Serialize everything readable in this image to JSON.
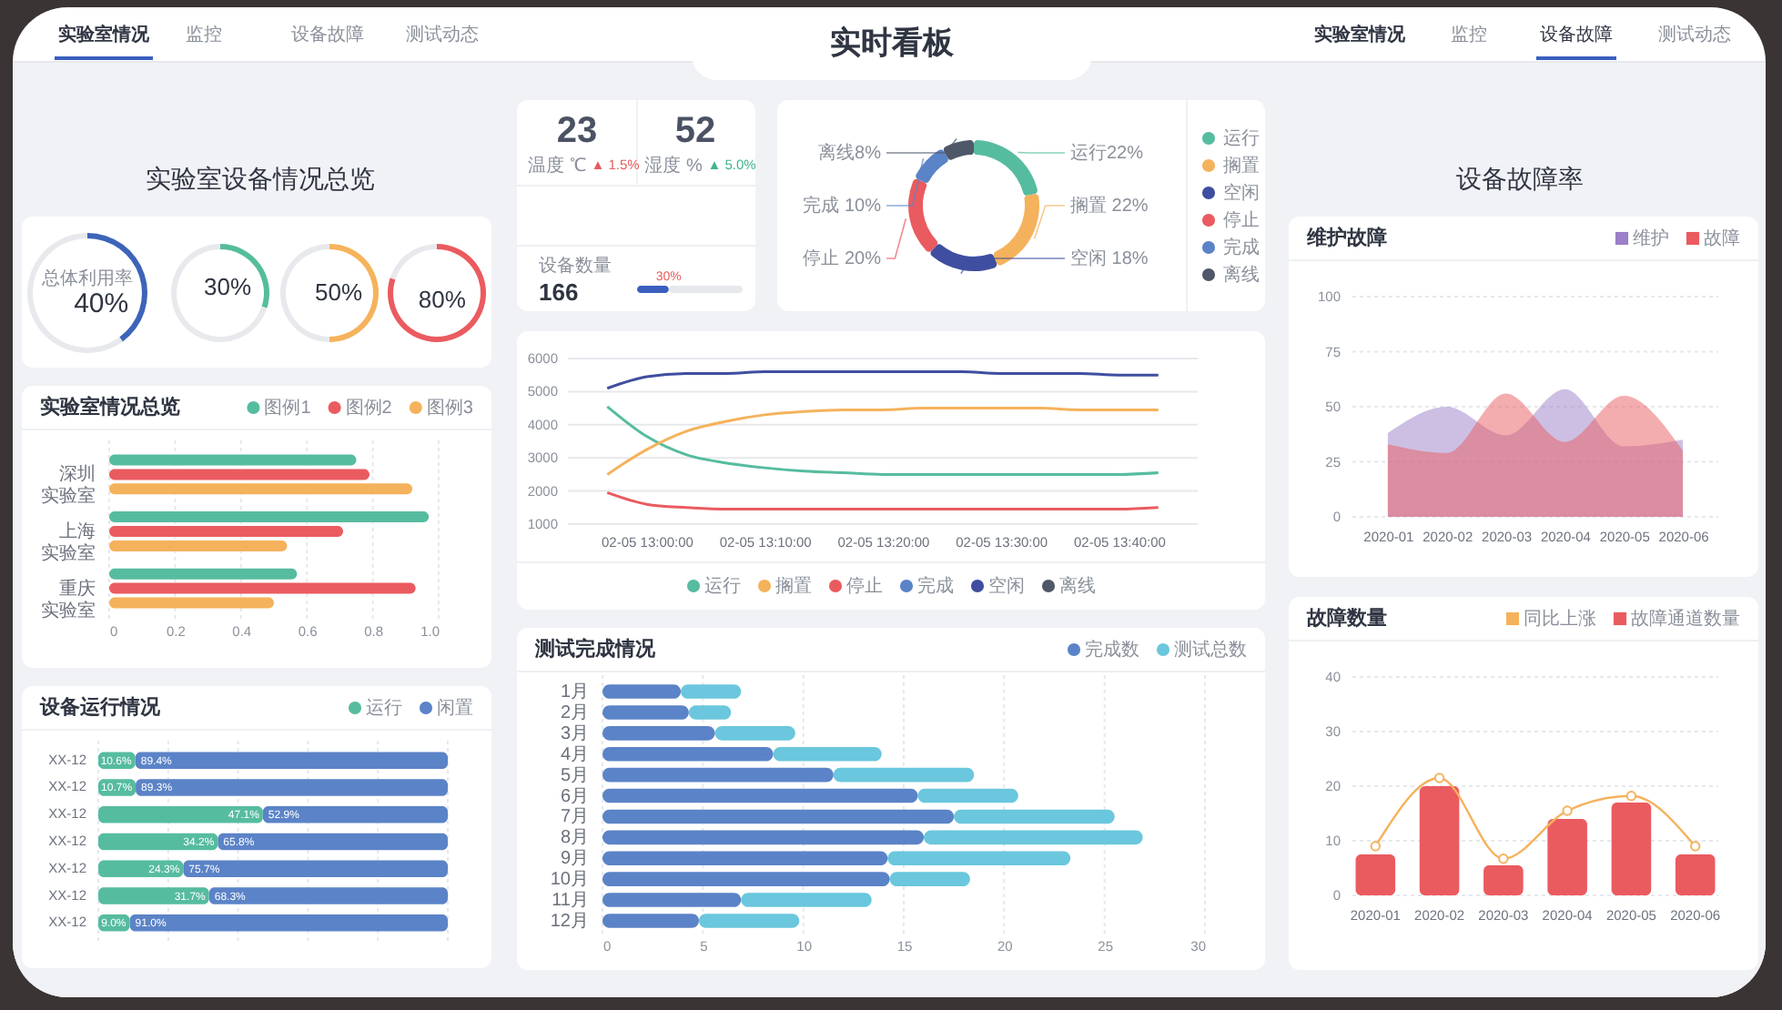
{
  "chart_data": [
    {
      "type": "other",
      "title": "实时看板",
      "annotations": [
        "实验室情况",
        "监控",
        "设备故障",
        "测试动态",
        "实验室情况",
        "监控",
        "设备故障",
        "测试动态",
        "实验室设备情况总览",
        "设备故障率"
      ]
    },
    {
      "type": "donut",
      "categories": [
        null,
        null
      ],
      "values": [
        40,
        60
      ],
      "colors": [
        "#3d64b8",
        "#e8e9ed"
      ],
      "value_labels": [
        "40%",
        null
      ],
      "annotations": [
        "总体利用率"
      ]
    },
    {
      "type": "donut",
      "categories": [
        null,
        null
      ],
      "values": [
        30,
        70
      ],
      "colors": [
        "#55bd9c",
        "#e8e9ed"
      ],
      "value_labels": [
        "30%",
        null
      ]
    },
    {
      "type": "donut",
      "categories": [
        null,
        null
      ],
      "values": [
        50,
        50
      ],
      "colors": [
        "#f5b35c",
        "#e8e9ed"
      ],
      "value_labels": [
        "50%",
        null
      ]
    },
    {
      "type": "donut",
      "categories": [
        null,
        null
      ],
      "values": [
        80,
        20
      ],
      "colors": [
        "#ea5b60",
        "#e8e9ed"
      ],
      "value_labels": [
        "80%",
        null
      ]
    },
    {
      "type": "bar",
      "orientation": "horizontal",
      "title": "实验室情况总览",
      "categories": [
        "深圳实验室",
        "上海实验室",
        "重庆实验室"
      ],
      "series": [
        {
          "name": "图例1",
          "color": "#56bc9f",
          "values": [
            0.75,
            0.97,
            0.57
          ]
        },
        {
          "name": "图例2",
          "color": "#ea5b60",
          "values": [
            0.79,
            0.71,
            0.93
          ]
        },
        {
          "name": "图例3",
          "color": "#f5b25c",
          "values": [
            0.92,
            0.54,
            0.5
          ]
        }
      ],
      "xlim": [
        0,
        1
      ],
      "xticks": [
        0,
        0.2,
        0.4,
        0.6,
        0.8,
        {
          "value": 1,
          "label": "1.0"
        }
      ],
      "grid": "x",
      "legend": "top right"
    },
    {
      "type": "bar",
      "orientation": "horizontal",
      "stacked": true,
      "title": "设备运行情况",
      "categories": [
        "XX-12",
        "XX-12",
        "XX-12",
        "XX-12",
        "XX-12",
        "XX-12",
        "XX-12"
      ],
      "series": [
        {
          "name": "运行",
          "color": "#56bc9f",
          "values": [
            10.6,
            10.7,
            47.1,
            34.2,
            24.3,
            31.7,
            9.0
          ],
          "value_labels": [
            "10.6%",
            "10.7%",
            "47.1%",
            "34.2%",
            "24.3%",
            "31.7%",
            "9.0%"
          ]
        },
        {
          "name": "闲置",
          "color": "#5b83c7",
          "values": [
            89.4,
            89.3,
            52.9,
            65.8,
            75.7,
            68.3,
            91.0
          ],
          "value_labels": [
            "89.4%",
            "89.3%",
            "52.9%",
            "65.8%",
            "75.7%",
            "68.3%",
            "91.0%"
          ]
        }
      ],
      "xlim": [
        0,
        100
      ],
      "xticks": [
        {
          "value": 0,
          "label": null
        },
        {
          "value": 20,
          "label": null
        },
        {
          "value": 40,
          "label": null
        },
        {
          "value": 60,
          "label": null
        },
        {
          "value": 80,
          "label": null
        },
        {
          "value": 100,
          "label": null
        }
      ],
      "grid": "x",
      "tick_labels": "y",
      "legend": "top right"
    },
    {
      "type": "other",
      "annotations": [
        "23",
        "温度 ℃",
        "▲ 1.5%",
        "52",
        "湿度 %",
        "▲ 5.0%",
        "设备数量",
        "166"
      ]
    },
    {
      "type": "bar",
      "orientation": "horizontal",
      "stacked": true,
      "categories": [
        null
      ],
      "series": [
        {
          "color": "#3a5fbf",
          "values": [
            30
          ],
          "value_labels": [
            "30%"
          ]
        },
        {
          "color": "#e6e8ec",
          "values": [
            70
          ]
        }
      ],
      "xlim": [
        0,
        100
      ],
      "tick_labels": false
    },
    {
      "type": "donut",
      "categories": [
        "运行",
        "搁置",
        "空闲",
        "停止",
        "完成",
        "离线"
      ],
      "values": [
        22,
        22,
        18,
        20,
        10,
        8
      ],
      "colors": [
        "#56bc9f",
        "#f5b25c",
        "#3f4ea0",
        "#ea5b60",
        "#5b83c7",
        "#4f5868"
      ],
      "value_labels": [
        "运行22%",
        "搁置 22%",
        "空闲 18%",
        "停止 20%",
        "完成 10%",
        "离线8%"
      ],
      "legend": "right"
    },
    {
      "type": "line",
      "categories": [
        null,
        "02-05 13:00:00",
        null,
        null,
        "02-05 13:10:00",
        null,
        null,
        "02-05 13:20:00",
        null,
        null,
        "02-05 13:30:00",
        null,
        null,
        "02-05 13:40:00",
        null
      ],
      "series": [
        {
          "name": "运行",
          "color": "#56bc9f",
          "values": [
            4550,
            3650,
            3100,
            2850,
            2700,
            2600,
            2550,
            2500,
            2500,
            2500,
            2500,
            2500,
            2500,
            2500,
            2550
          ]
        },
        {
          "name": "搁置",
          "color": "#f5b25c",
          "values": [
            2500,
            3250,
            3800,
            4100,
            4300,
            4400,
            4450,
            4450,
            4500,
            4500,
            4500,
            4500,
            4450,
            4450,
            4450
          ]
        },
        {
          "name": "停止",
          "color": "#ea5b60",
          "values": [
            1950,
            1600,
            1500,
            1450,
            1450,
            1450,
            1450,
            1450,
            1450,
            1450,
            1450,
            1450,
            1450,
            1450,
            1500
          ]
        },
        {
          "name": "完成",
          "color": "#5b83c7",
          "values": [
            null,
            null,
            null,
            null,
            null,
            null,
            null,
            null,
            null,
            null,
            null,
            null,
            null,
            null,
            null
          ]
        },
        {
          "name": "空闲",
          "color": "#3f4ea0",
          "values": [
            5100,
            5450,
            5550,
            5550,
            5600,
            5600,
            5600,
            5600,
            5600,
            5600,
            5550,
            5550,
            5550,
            5500,
            5500
          ]
        },
        {
          "name": "离线",
          "color": "#4f5868",
          "values": [
            null,
            null,
            null,
            null,
            null,
            null,
            null,
            null,
            null,
            null,
            null,
            null,
            null,
            null,
            null
          ]
        }
      ],
      "ylim": [
        1000,
        6000
      ],
      "yticks": [
        1000,
        2000,
        3000,
        4000,
        5000,
        6000
      ],
      "grid": "y",
      "legend": "bottom"
    },
    {
      "type": "bar",
      "orientation": "horizontal",
      "stacked": true,
      "title": "测试完成情况",
      "categories": [
        "1月",
        "2月",
        "3月",
        "4月",
        "5月",
        "6月",
        "7月",
        "8月",
        "9月",
        "10月",
        "11月",
        "12月"
      ],
      "series": [
        {
          "name": "完成数",
          "color": "#5b83c7",
          "values": [
            3.9,
            4.3,
            5.6,
            8.5,
            11.5,
            15.7,
            17.5,
            16,
            14.2,
            14.3,
            6.9,
            4.8
          ]
        },
        {
          "name": "测试总数",
          "color": "#6ac7dd",
          "values": [
            3,
            2.1,
            4,
            5.4,
            7,
            5,
            8,
            10.9,
            9.1,
            4,
            6.5,
            5
          ]
        }
      ],
      "xlim": [
        0,
        30
      ],
      "xticks": [
        0,
        5,
        10,
        15,
        20,
        25,
        30
      ],
      "grid": "x",
      "legend": "top right"
    },
    {
      "type": "area",
      "title": "维护故障",
      "categories": [
        "2020-01",
        "2020-02",
        "2020-03",
        "2020-04",
        "2020-05",
        "2020-06"
      ],
      "series": [
        {
          "name": "维护",
          "color": "#9b7fc8",
          "values": [
            38,
            50,
            37,
            58,
            32,
            35
          ]
        },
        {
          "name": "故障",
          "color": "#ea5b60",
          "values": [
            33,
            29,
            56,
            34,
            55,
            30
          ]
        }
      ],
      "ylim": [
        0,
        100
      ],
      "yticks": [
        0,
        25,
        50,
        75,
        100
      ],
      "grid": "y",
      "legend": "top right"
    },
    {
      "type": "bar",
      "title": "故障数量",
      "categories": [
        "2020-01",
        "2020-02",
        "2020-03",
        "2020-04",
        "2020-05",
        "2020-06"
      ],
      "series": [
        {
          "name": "同比上涨",
          "type": "line",
          "color": "#f5b25c",
          "values": [
            9,
            21.5,
            6.7,
            15.5,
            18.2,
            9
          ]
        },
        {
          "name": "故障通道数量",
          "color": "#ea5b60",
          "values": [
            7.5,
            20,
            5.5,
            14,
            17,
            7.5
          ]
        }
      ],
      "ylim": [
        0,
        40
      ],
      "yticks": [
        0,
        10,
        20,
        30,
        40
      ],
      "grid": "y",
      "legend": "top right",
      "marker": "circle"
    }
  ]
}
